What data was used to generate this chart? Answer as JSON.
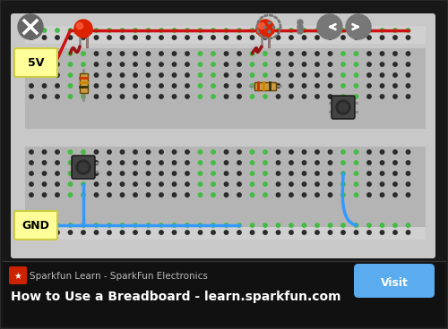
{
  "bg_color": "#1a1a1a",
  "bb_outer_color": "#c8c8c8",
  "bb_inner_color": "#b4b4b4",
  "bb_rail_color": "#d0d0d0",
  "bb_mid_color": "#c0c0c0",
  "hole_dark": "#2a2a2a",
  "hole_green": "#44bb44",
  "wire_red": "#cc1111",
  "wire_dark_red": "#991111",
  "wire_blue": "#3399ff",
  "led_red_body": "#dd2200",
  "led_shine": "#ff6644",
  "led_lead": "#888888",
  "resistor_body": "#cc9944",
  "resistor_border": "#664400",
  "resistor_band1": "#cc3300",
  "resistor_band2": "#cc8800",
  "resistor_band3": "#333300",
  "button_body": "#444444",
  "button_center": "#1a1a1a",
  "button_pin": "#888888",
  "label_bg": "#ffff99",
  "label_border": "#cccc44",
  "label_5v": "5V",
  "label_gnd": "GND",
  "icon_gray": "#777777",
  "icon_light": "#999999",
  "close_btn": "#666666",
  "bottom_bg": "#111111",
  "site_name": "Sparkfun Learn - SparkFun Electronics",
  "title": "How to Use a Breadboard - learn.sparkfun.com",
  "visit_btn": "#5aacee",
  "visit_text": "Visit",
  "sparkfun_icon_bg": "#cc2200",
  "text_gray": "#bbbbbb",
  "text_white": "#ffffff"
}
